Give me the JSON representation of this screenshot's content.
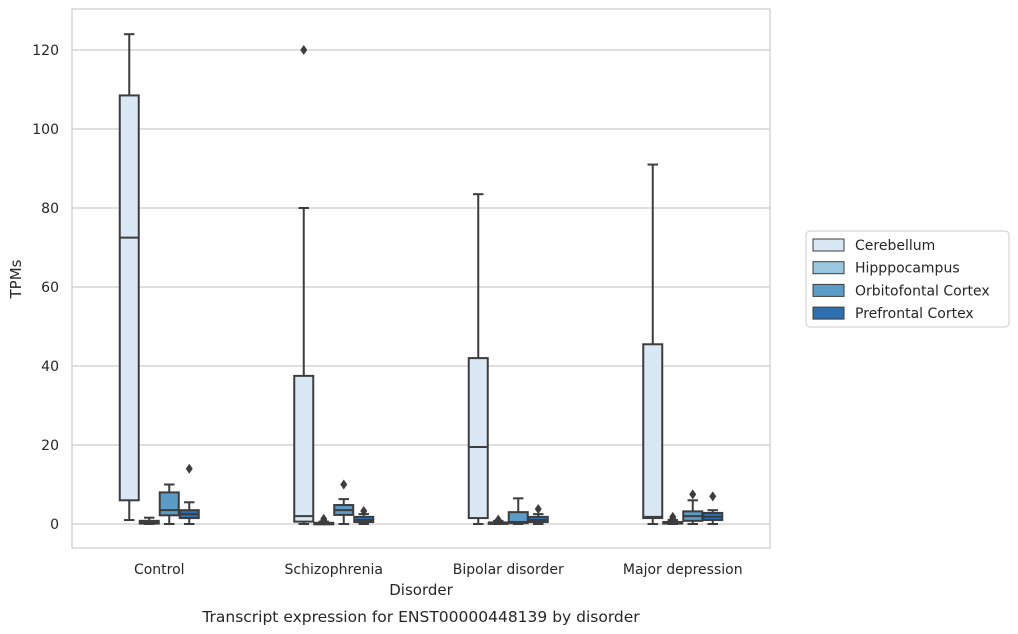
{
  "chart_data": {
    "type": "box",
    "caption": "Transcript expression for ENST00000448139 by disorder",
    "xlabel": "Disorder",
    "ylabel": "TPMs",
    "ylim": [
      -6,
      131
    ],
    "yticks": [
      0,
      20,
      40,
      60,
      80,
      100,
      120
    ],
    "grid": "horizontal",
    "legend_position": "right",
    "categories": [
      "Control",
      "Schizophrenia",
      "Bipolar disorder",
      "Major depression"
    ],
    "series": [
      {
        "name": "Cerebellum",
        "color": "#dae8f5",
        "boxes": [
          {
            "whislo": 1,
            "q1": 6,
            "med": 72.5,
            "q3": 108.5,
            "whishi": 124,
            "fliers": []
          },
          {
            "whislo": 0,
            "q1": 0.6,
            "med": 2,
            "q3": 37.5,
            "whishi": 80,
            "fliers": [
              120
            ]
          },
          {
            "whislo": 0,
            "q1": 1.5,
            "med": 19.5,
            "q3": 42,
            "whishi": 83.5,
            "fliers": []
          },
          {
            "whislo": 0,
            "q1": 1.5,
            "med": 1.8,
            "q3": 45.5,
            "whishi": 91,
            "fliers": []
          }
        ]
      },
      {
        "name": "Hipppocampus",
        "color": "#9ac6e0",
        "boxes": [
          {
            "whislo": 0,
            "q1": 0.1,
            "med": 0.4,
            "q3": 0.8,
            "whishi": 1.6,
            "fliers": []
          },
          {
            "whislo": 0,
            "q1": 0.05,
            "med": 0.15,
            "q3": 0.3,
            "whishi": 0.6,
            "fliers": [
              1.3,
              0.9
            ]
          },
          {
            "whislo": 0,
            "q1": 0.05,
            "med": 0.2,
            "q3": 0.4,
            "whishi": 0.8,
            "fliers": [
              1.1
            ]
          },
          {
            "whislo": 0,
            "q1": 0.1,
            "med": 0.25,
            "q3": 0.5,
            "whishi": 1.0,
            "fliers": [
              1.8,
              1.3
            ]
          }
        ]
      },
      {
        "name": "Orbitofontal Cortex",
        "color": "#5b9bc8",
        "boxes": [
          {
            "whislo": 0,
            "q1": 2.2,
            "med": 3.5,
            "q3": 8,
            "whishi": 10,
            "fliers": []
          },
          {
            "whislo": 0,
            "q1": 2.3,
            "med": 3.5,
            "q3": 4.8,
            "whishi": 6.3,
            "fliers": [
              10
            ]
          },
          {
            "whislo": 0,
            "q1": 0.2,
            "med": 0.5,
            "q3": 3,
            "whishi": 6.5,
            "fliers": []
          },
          {
            "whislo": 0,
            "q1": 0.8,
            "med": 2,
            "q3": 3.2,
            "whishi": 6,
            "fliers": [
              7.5
            ]
          }
        ]
      },
      {
        "name": "Prefrontal Cortex",
        "color": "#2e6fb0",
        "boxes": [
          {
            "whislo": 0,
            "q1": 1.5,
            "med": 2.5,
            "q3": 3.5,
            "whishi": 5.5,
            "fliers": [
              14
            ]
          },
          {
            "whislo": 0,
            "q1": 0.5,
            "med": 1,
            "q3": 1.8,
            "whishi": 2.5,
            "fliers": [
              3.3
            ]
          },
          {
            "whislo": 0,
            "q1": 0.5,
            "med": 1,
            "q3": 1.8,
            "whishi": 2.5,
            "fliers": [
              3.8
            ]
          },
          {
            "whislo": 0,
            "q1": 1,
            "med": 1.8,
            "q3": 2.8,
            "whishi": 3.5,
            "fliers": [
              7
            ]
          }
        ]
      }
    ]
  }
}
